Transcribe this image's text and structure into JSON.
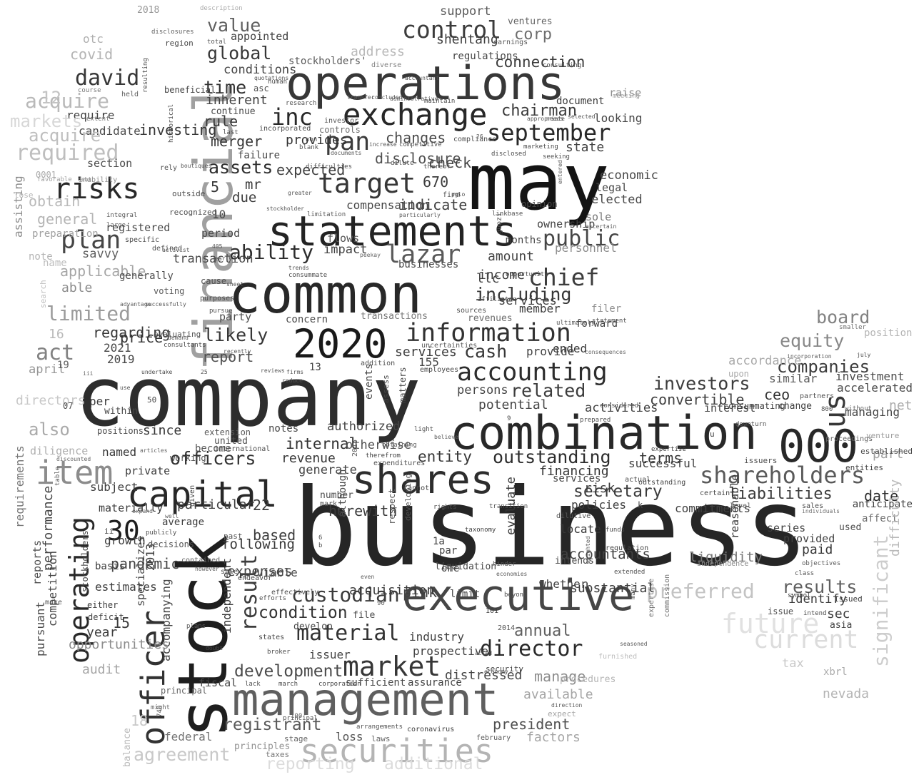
{
  "cloud_words": [
    "business",
    "company",
    "may",
    "stock",
    "financial",
    "common",
    "operations",
    "combination",
    "statements",
    "executive",
    "management",
    "000",
    "2020",
    "shares",
    "capital",
    "officer",
    "exchange",
    "securities",
    "item",
    "risks",
    "information",
    "market",
    "accounting",
    "target",
    "plan",
    "operating",
    "us",
    "lazar",
    "inc",
    "30",
    "chief",
    "director",
    "pan",
    "september",
    "control",
    "public",
    "shareholders",
    "related",
    "cash",
    "officers",
    "david",
    "material",
    "acquire",
    "required",
    "ability",
    "assets",
    "custodian",
    "result",
    "including",
    "outstanding",
    "likely",
    "chairman",
    "investors",
    "preferred",
    "future",
    "results",
    "limited",
    "secretary",
    "equity",
    "board",
    "companies",
    "condition",
    "current",
    "significant",
    "financing",
    "global",
    "rule",
    "time",
    "value",
    "exchange",
    "act",
    "corp",
    "registrant",
    "agreement",
    "reporting",
    "additional",
    "development",
    "president",
    "pandemic",
    "date",
    "liabilities",
    "internal",
    "entity",
    "terms",
    "convertible",
    "investment",
    "accelerated",
    "merger",
    "report",
    "regarding",
    "price",
    "mr",
    "expected",
    "due",
    "compensation",
    "indicate",
    "changes",
    "disclosure",
    "check",
    "670",
    "state",
    "economic",
    "legal",
    "elected",
    "sole",
    "ownership",
    "opinion",
    "months",
    "amount",
    "income",
    "llc",
    "personnel",
    "transaction",
    "impact",
    "flows",
    "businesses",
    "services",
    "filer",
    "forward",
    "ended",
    "activities",
    "interest",
    "similar",
    "ceo",
    "change",
    "managing",
    "part",
    "net",
    "evaluate",
    "potential",
    "persons",
    "authorized",
    "revenue",
    "generate",
    "otherwise",
    "notes",
    "since",
    "named",
    "private",
    "subject",
    "materially",
    "particular",
    "22",
    "based",
    "following",
    "expenses",
    "viable",
    "accompanying",
    "specializes",
    "18",
    "15",
    "year",
    "growth",
    "estimates",
    "basis",
    "competition",
    "performance",
    "pursuant",
    "reports",
    "requirements",
    "opportunities",
    "audit",
    "also",
    "directors",
    "april",
    "19",
    "2019",
    "2021",
    "16",
    "able",
    "applicable",
    "savvy",
    "registered",
    "general",
    "obtain",
    "section",
    "candidate",
    "require",
    "investing",
    "12",
    "acquire",
    "markets",
    "otc",
    "covid",
    "2018",
    "appointed",
    "conditions",
    "inherent",
    "continue",
    "beneficial",
    "held",
    "provides",
    "5",
    "10",
    "period",
    "generally",
    "voting",
    "party",
    "concern",
    "transactions",
    "revenues",
    "member",
    "services",
    "155",
    "provide",
    "13",
    "addition",
    "employees",
    "uncertainties",
    "events",
    "assess",
    "matters",
    "therefrom",
    "expenditures",
    "respect",
    "developing",
    "although",
    "herewith",
    "number",
    "mark",
    "pink",
    "acquisition",
    "file",
    "develop",
    "issuer",
    "prospective",
    "industry",
    "assurance",
    "sufficient",
    "distressed",
    "loss",
    "laws",
    "stage",
    "taxes",
    "principles",
    "federal",
    "principal",
    "balance",
    "fiscal",
    "lack",
    "march",
    "corporation",
    "security",
    "manage",
    "available",
    "factors",
    "expect",
    "annual",
    "substantial",
    "whether",
    "beyond",
    "limit",
    "locate",
    "paid",
    "sec",
    "asia",
    "identify",
    "issued",
    "liquidity",
    "reasonable",
    "series",
    "provided",
    "used",
    "anticipate",
    "affect",
    "entities",
    "established",
    "issuers",
    "venture",
    "xbrl",
    "nevada",
    "tax",
    "procedures",
    "furnished",
    "difficulty",
    "accordance",
    "upon",
    "position",
    "july",
    "incorporation",
    "statement",
    "ultimately",
    "smaller",
    "consequences",
    "liquidation",
    "1a",
    "par",
    "one",
    "intends",
    "taxonomy",
    "accountants",
    "6",
    "b",
    "dilutive",
    "weighted",
    "regulation",
    "funds",
    "extended",
    "many",
    "expertise",
    "commission",
    "commitments",
    "certain",
    "sales",
    "individuals",
    "level",
    "independence",
    "objectives",
    "class",
    "symbol",
    "intend",
    "issue",
    "101",
    "2014",
    "hinder",
    "economies",
    "economy",
    "direction",
    "seasoned",
    "acted",
    "arrangements",
    "coronavirus",
    "february",
    "principal",
    "100",
    "740",
    "might",
    "doubt",
    "plans",
    "broker",
    "states",
    "efforts",
    "effectively",
    "either",
    "deficit",
    "independent",
    "2013",
    "stockholders",
    "make",
    "table",
    "discounted",
    "ii",
    "within",
    "per",
    "07",
    "50",
    "use",
    "positions",
    "diligence",
    "extension",
    "united",
    "international",
    "become",
    "working",
    "articles",
    "expand",
    "well",
    "average",
    "publicly",
    "decisions",
    "given",
    "contained",
    "however",
    "past",
    "sale",
    "endeavor",
    "iii",
    "undertake",
    "25",
    "reduce",
    "reviews",
    "firms",
    "recently",
    "consultants",
    "evaluating",
    "demand",
    "advantage",
    "successfully",
    "purposes",
    "pursue",
    "cause",
    "sheet",
    "trends",
    "consummate",
    "early",
    "405",
    "defined",
    "activist",
    "specific",
    "integral",
    "large",
    "recognized",
    "outside",
    "boutiques",
    "rely",
    "difficulties",
    "greater",
    "stockholder",
    "limitation",
    "particularly",
    "linkbase",
    "firm",
    "pglo",
    "entered",
    "ascertain",
    "guozi",
    "peekay",
    "affiliates",
    "opportunity",
    "sources",
    "shentang",
    "connection",
    "regulations",
    "support",
    "ventures",
    "earnings",
    "consulting",
    "accountant",
    "diverse",
    "address",
    "stockholders'",
    "total",
    "region",
    "disclosures",
    "description",
    "resulting",
    "quotations",
    "human",
    "asc",
    "historical",
    "research",
    "transfer",
    "concluded",
    "administrative",
    "appropriate",
    "needs",
    "selected",
    "last",
    "non",
    "failure",
    "blank",
    "incorporated",
    "controls",
    "increase",
    "documents",
    "dilute",
    "competitive",
    "disclosed",
    "thereof",
    "compliance",
    "marketing",
    "seeking",
    "26",
    "maintain",
    "investor",
    "document",
    "looking",
    "raise",
    "meeting",
    "assisting",
    "preparation",
    "note",
    "name",
    "search",
    "favorable",
    "inability",
    "debt",
    "course",
    "extent",
    "lose",
    "0001",
    "exchange act",
    "consummating",
    "considered",
    "prepared",
    "downturn",
    "800",
    "without",
    "proceedings",
    "partners",
    "9",
    "u",
    "k",
    "rights",
    "transition",
    "light",
    "obtaining",
    "2015",
    "believe",
    "90",
    "even",
    "expertise",
    "risk",
    "services",
    "policies",
    "successful",
    "outstanding",
    "actual",
    "cannot",
    "negotiating"
  ]
}
